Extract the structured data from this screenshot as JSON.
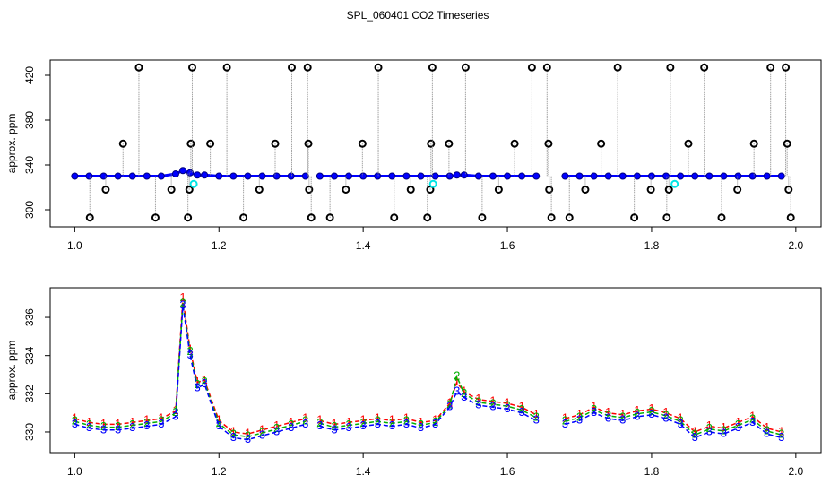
{
  "title": "SPL_060401  CO2 Timeseries",
  "chart_data": [
    {
      "type": "scatter",
      "y_label": "approx. ppm",
      "xlim": [
        0.966,
        2.035
      ],
      "ylim": [
        284.8,
        433.6
      ],
      "xticks": [
        {
          "value": 1,
          "label": "1.0"
        },
        {
          "value": 1.2,
          "label": "1.2"
        },
        {
          "value": 1.4,
          "label": "1.4"
        },
        {
          "value": 1.6,
          "label": "1.6"
        },
        {
          "value": 1.8,
          "label": "1.8"
        },
        {
          "value": 2,
          "label": "2.0"
        }
      ],
      "yticks": [
        300,
        340,
        380,
        420
      ],
      "x": [
        1.0,
        1.02,
        1.04,
        1.06,
        1.08,
        1.1,
        1.12,
        1.14,
        1.15,
        1.16,
        1.17,
        1.18,
        1.2,
        1.22,
        1.24,
        1.26,
        1.28,
        1.3,
        1.32,
        1.33,
        1.34,
        1.36,
        1.38,
        1.4,
        1.42,
        1.44,
        1.46,
        1.48,
        1.5,
        1.52,
        1.53,
        1.54,
        1.56,
        1.58,
        1.6,
        1.62,
        1.64,
        1.665,
        1.68,
        1.7,
        1.72,
        1.74,
        1.76,
        1.78,
        1.8,
        1.82,
        1.84,
        1.86,
        1.88,
        1.9,
        1.92,
        1.94,
        1.96,
        1.98
      ],
      "series": [
        {
          "color": "#0000ff",
          "marker": "circle",
          "filled": true,
          "values": [
            330,
            330,
            330,
            330,
            330,
            330,
            330,
            332,
            335,
            333,
            331,
            331,
            330,
            330,
            330,
            330,
            330,
            330,
            330,
            null,
            330,
            330,
            330,
            330,
            330,
            330,
            330,
            330,
            330,
            330,
            331,
            331,
            330,
            330,
            330,
            330,
            330,
            null,
            330,
            330,
            330,
            330,
            330,
            330,
            330,
            330,
            330,
            330,
            330,
            330,
            330,
            330,
            330,
            330
          ]
        },
        {
          "color": "#000000",
          "marker": "circle",
          "filled": false,
          "stems": true,
          "x": [
            1.021,
            1.043,
            1.067,
            1.089,
            1.112,
            1.134,
            1.157,
            1.159,
            1.161,
            1.163,
            1.188,
            1.211,
            1.234,
            1.256,
            1.278,
            1.301,
            1.323,
            1.324,
            1.325,
            1.328,
            1.354,
            1.376,
            1.399,
            1.421,
            1.443,
            1.466,
            1.489,
            1.493,
            1.494,
            1.496,
            1.519,
            1.542,
            1.565,
            1.588,
            1.61,
            1.634,
            1.655,
            1.657,
            1.658,
            1.661,
            1.686,
            1.708,
            1.73,
            1.753,
            1.776,
            1.799,
            1.821,
            1.824,
            1.826,
            1.851,
            1.873,
            1.897,
            1.919,
            1.942,
            1.965,
            1.986,
            1.988,
            1.99,
            1.993
          ],
          "values": [
            293,
            318,
            359,
            427,
            293,
            318,
            293,
            318,
            359,
            427,
            359,
            427,
            293,
            318,
            359,
            427,
            427,
            359,
            318,
            293,
            293,
            318,
            359,
            427,
            293,
            318,
            293,
            318,
            359,
            427,
            359,
            427,
            293,
            318,
            359,
            427,
            427,
            359,
            318,
            293,
            293,
            318,
            359,
            427,
            293,
            318,
            293,
            318,
            427,
            359,
            427,
            293,
            318,
            359,
            427,
            427,
            359,
            318,
            293
          ]
        },
        {
          "color": "#00e5e5",
          "marker": "circle",
          "filled": false,
          "x": [
            1.165,
            1.497,
            1.832
          ],
          "values": [
            323,
            323,
            323
          ]
        }
      ]
    },
    {
      "type": "line",
      "y_label": "approx. ppm",
      "xlim": [
        0.966,
        2.035
      ],
      "ylim": [
        328.92,
        337.55
      ],
      "xticks": [
        {
          "value": 1,
          "label": "1.0"
        },
        {
          "value": 1.2,
          "label": "1.2"
        },
        {
          "value": 1.4,
          "label": "1.4"
        },
        {
          "value": 1.6,
          "label": "1.6"
        },
        {
          "value": 1.8,
          "label": "1.8"
        },
        {
          "value": 2,
          "label": "2.0"
        }
      ],
      "yticks": [
        330,
        332,
        334,
        336
      ],
      "x": [
        1.0,
        1.02,
        1.04,
        1.06,
        1.08,
        1.1,
        1.12,
        1.14,
        1.15,
        1.16,
        1.17,
        1.18,
        1.2,
        1.22,
        1.24,
        1.26,
        1.28,
        1.3,
        1.32,
        1.33,
        1.34,
        1.36,
        1.38,
        1.4,
        1.42,
        1.44,
        1.46,
        1.48,
        1.5,
        1.52,
        1.53,
        1.54,
        1.56,
        1.58,
        1.6,
        1.62,
        1.64,
        1.665,
        1.68,
        1.7,
        1.72,
        1.74,
        1.76,
        1.78,
        1.8,
        1.82,
        1.84,
        1.86,
        1.88,
        1.9,
        1.92,
        1.94,
        1.96,
        1.98
      ],
      "series": [
        {
          "color": "#ff0000",
          "marker": "1",
          "values": [
            330.7,
            330.5,
            330.4,
            330.4,
            330.5,
            330.6,
            330.7,
            331.1,
            337.0,
            334.3,
            332.6,
            332.7,
            330.6,
            330.0,
            329.9,
            330.1,
            330.3,
            330.5,
            330.7,
            null,
            330.6,
            330.4,
            330.5,
            330.6,
            330.7,
            330.6,
            330.7,
            330.5,
            330.6,
            331.5,
            332.6,
            332.1,
            331.7,
            331.6,
            331.5,
            331.3,
            330.9,
            null,
            330.7,
            330.9,
            331.3,
            331.0,
            330.9,
            331.1,
            331.2,
            331.0,
            330.7,
            330.0,
            330.3,
            330.2,
            330.5,
            330.8,
            330.2,
            330.0
          ]
        },
        {
          "color": "#00b000",
          "marker": "2",
          "values": [
            330.55,
            330.35,
            330.25,
            330.25,
            330.35,
            330.45,
            330.55,
            331.0,
            336.7,
            334.2,
            332.45,
            332.6,
            330.45,
            329.85,
            329.75,
            329.95,
            330.15,
            330.35,
            330.55,
            null,
            330.45,
            330.25,
            330.35,
            330.45,
            330.55,
            330.45,
            330.55,
            330.35,
            330.5,
            331.4,
            332.9,
            332.0,
            331.55,
            331.45,
            331.35,
            331.15,
            330.75,
            null,
            330.55,
            330.75,
            331.15,
            330.85,
            330.75,
            330.95,
            331.05,
            330.85,
            330.55,
            329.85,
            330.15,
            330.05,
            330.35,
            330.65,
            330.05,
            329.85
          ]
        },
        {
          "color": "#0000ff",
          "marker": "3",
          "values": [
            330.4,
            330.2,
            330.1,
            330.1,
            330.2,
            330.3,
            330.4,
            330.8,
            336.6,
            334.0,
            332.3,
            332.5,
            330.3,
            329.7,
            329.6,
            329.8,
            330.0,
            330.2,
            330.4,
            null,
            330.3,
            330.1,
            330.2,
            330.3,
            330.4,
            330.3,
            330.4,
            330.2,
            330.4,
            331.3,
            332.1,
            331.8,
            331.4,
            331.3,
            331.2,
            331.0,
            330.6,
            null,
            330.4,
            330.6,
            331.0,
            330.7,
            330.6,
            330.8,
            330.9,
            330.7,
            330.4,
            329.7,
            330.0,
            329.9,
            330.2,
            330.5,
            329.9,
            329.7
          ]
        }
      ]
    }
  ]
}
